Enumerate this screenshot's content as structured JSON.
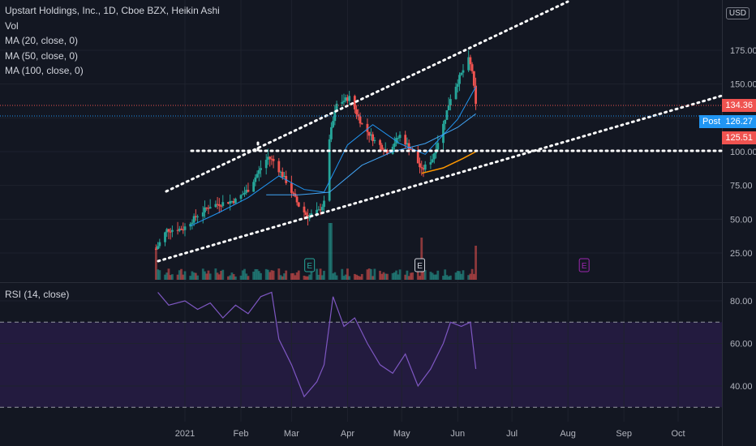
{
  "header": {
    "title": "Upstart Holdings, Inc., 1D, Cboe BZX, Heikin Ashi",
    "indicators": [
      "Vol",
      "MA (20, close, 0)",
      "MA (50, close, 0)",
      "MA (100, close, 0)"
    ],
    "currency": "USD"
  },
  "rsi": {
    "label": "RSI (14, close)"
  },
  "price_tags": {
    "last": "134.36",
    "post_label": "Post",
    "post": "126.27",
    "low": "125.51"
  },
  "colors": {
    "bg": "#131722",
    "up": "#26a69a",
    "down": "#ef5350",
    "ma20": "#2196f3",
    "ma50": "#2196f3",
    "ma100": "#ff9800",
    "rsi": "#7e57c2",
    "earnings_purple": "#9c27b0"
  },
  "chart_data": [
    {
      "type": "candlestick",
      "title": "Upstart Holdings, Inc., 1D, Cboe BZX, Heikin Ashi",
      "x_ticks": [
        "2021",
        "Feb",
        "Mar",
        "Apr",
        "May",
        "Jun",
        "Jul",
        "Aug",
        "Sep",
        "Oct"
      ],
      "y_ticks": [
        25,
        50,
        75,
        100,
        125,
        150,
        175
      ],
      "ylim": [
        0,
        200
      ],
      "close_path": [
        {
          "x": "2020-12-16",
          "y": 28
        },
        {
          "x": "2020-12-22",
          "y": 42
        },
        {
          "x": "2020-12-31",
          "y": 43
        },
        {
          "x": "2021-01-08",
          "y": 53
        },
        {
          "x": "2021-01-15",
          "y": 60
        },
        {
          "x": "2021-01-22",
          "y": 62
        },
        {
          "x": "2021-01-29",
          "y": 64
        },
        {
          "x": "2021-02-05",
          "y": 72
        },
        {
          "x": "2021-02-12",
          "y": 88
        },
        {
          "x": "2021-02-16",
          "y": 96
        },
        {
          "x": "2021-02-19",
          "y": 93
        },
        {
          "x": "2021-02-26",
          "y": 78
        },
        {
          "x": "2021-03-05",
          "y": 60
        },
        {
          "x": "2021-03-10",
          "y": 52
        },
        {
          "x": "2021-03-16",
          "y": 56
        },
        {
          "x": "2021-03-19",
          "y": 62
        },
        {
          "x": "2021-03-22",
          "y": 110
        },
        {
          "x": "2021-03-26",
          "y": 135
        },
        {
          "x": "2021-04-02",
          "y": 140
        },
        {
          "x": "2021-04-09",
          "y": 120
        },
        {
          "x": "2021-04-16",
          "y": 108
        },
        {
          "x": "2021-04-23",
          "y": 100
        },
        {
          "x": "2021-04-30",
          "y": 112
        },
        {
          "x": "2021-05-07",
          "y": 100
        },
        {
          "x": "2021-05-12",
          "y": 86
        },
        {
          "x": "2021-05-18",
          "y": 95
        },
        {
          "x": "2021-05-24",
          "y": 120
        },
        {
          "x": "2021-05-28",
          "y": 140
        },
        {
          "x": "2021-06-02",
          "y": 155
        },
        {
          "x": "2021-06-07",
          "y": 168
        },
        {
          "x": "2021-06-09",
          "y": 160
        },
        {
          "x": "2021-06-11",
          "y": 134
        }
      ],
      "ma20": [
        {
          "x": "2021-01-04",
          "y": 45
        },
        {
          "x": "2021-01-20",
          "y": 55
        },
        {
          "x": "2021-02-05",
          "y": 66
        },
        {
          "x": "2021-02-22",
          "y": 82
        },
        {
          "x": "2021-03-08",
          "y": 72
        },
        {
          "x": "2021-03-19",
          "y": 70
        },
        {
          "x": "2021-04-01",
          "y": 105
        },
        {
          "x": "2021-04-15",
          "y": 120
        },
        {
          "x": "2021-04-30",
          "y": 106
        },
        {
          "x": "2021-05-14",
          "y": 98
        },
        {
          "x": "2021-06-01",
          "y": 124
        },
        {
          "x": "2021-06-11",
          "y": 148
        }
      ],
      "ma50": [
        {
          "x": "2021-02-15",
          "y": 68
        },
        {
          "x": "2021-03-05",
          "y": 68
        },
        {
          "x": "2021-03-22",
          "y": 70
        },
        {
          "x": "2021-04-09",
          "y": 90
        },
        {
          "x": "2021-04-26",
          "y": 100
        },
        {
          "x": "2021-05-14",
          "y": 106
        },
        {
          "x": "2021-06-01",
          "y": 118
        },
        {
          "x": "2021-06-11",
          "y": 128
        }
      ],
      "ma100": [
        {
          "x": "2021-05-12",
          "y": 84
        },
        {
          "x": "2021-05-24",
          "y": 88
        },
        {
          "x": "2021-06-04",
          "y": 95
        },
        {
          "x": "2021-06-11",
          "y": 100
        }
      ],
      "earnings_markers": [
        "2021-03-11",
        "2021-05-11",
        "2021-08-10"
      ]
    },
    {
      "type": "line",
      "title": "RSI (14, close)",
      "y_ticks": [
        40,
        60,
        80
      ],
      "ylim": [
        25,
        90
      ],
      "bands": [
        30,
        70
      ],
      "series": [
        {
          "values": [
            {
              "x": "2020-12-17",
              "y": 84
            },
            {
              "x": "2020-12-23",
              "y": 78
            },
            {
              "x": "2021-01-01",
              "y": 80
            },
            {
              "x": "2021-01-08",
              "y": 76
            },
            {
              "x": "2021-01-15",
              "y": 79
            },
            {
              "x": "2021-01-22",
              "y": 72
            },
            {
              "x": "2021-01-29",
              "y": 78
            },
            {
              "x": "2021-02-05",
              "y": 74
            },
            {
              "x": "2021-02-12",
              "y": 82
            },
            {
              "x": "2021-02-18",
              "y": 84
            },
            {
              "x": "2021-02-22",
              "y": 62
            },
            {
              "x": "2021-03-01",
              "y": 50
            },
            {
              "x": "2021-03-08",
              "y": 35
            },
            {
              "x": "2021-03-15",
              "y": 42
            },
            {
              "x": "2021-03-19",
              "y": 50
            },
            {
              "x": "2021-03-24",
              "y": 82
            },
            {
              "x": "2021-03-30",
              "y": 68
            },
            {
              "x": "2021-04-05",
              "y": 72
            },
            {
              "x": "2021-04-12",
              "y": 60
            },
            {
              "x": "2021-04-19",
              "y": 50
            },
            {
              "x": "2021-04-26",
              "y": 46
            },
            {
              "x": "2021-05-03",
              "y": 55
            },
            {
              "x": "2021-05-10",
              "y": 40
            },
            {
              "x": "2021-05-17",
              "y": 48
            },
            {
              "x": "2021-05-24",
              "y": 60
            },
            {
              "x": "2021-05-28",
              "y": 70
            },
            {
              "x": "2021-06-03",
              "y": 68
            },
            {
              "x": "2021-06-08",
              "y": 70
            },
            {
              "x": "2021-06-11",
              "y": 48
            }
          ]
        }
      ]
    }
  ]
}
